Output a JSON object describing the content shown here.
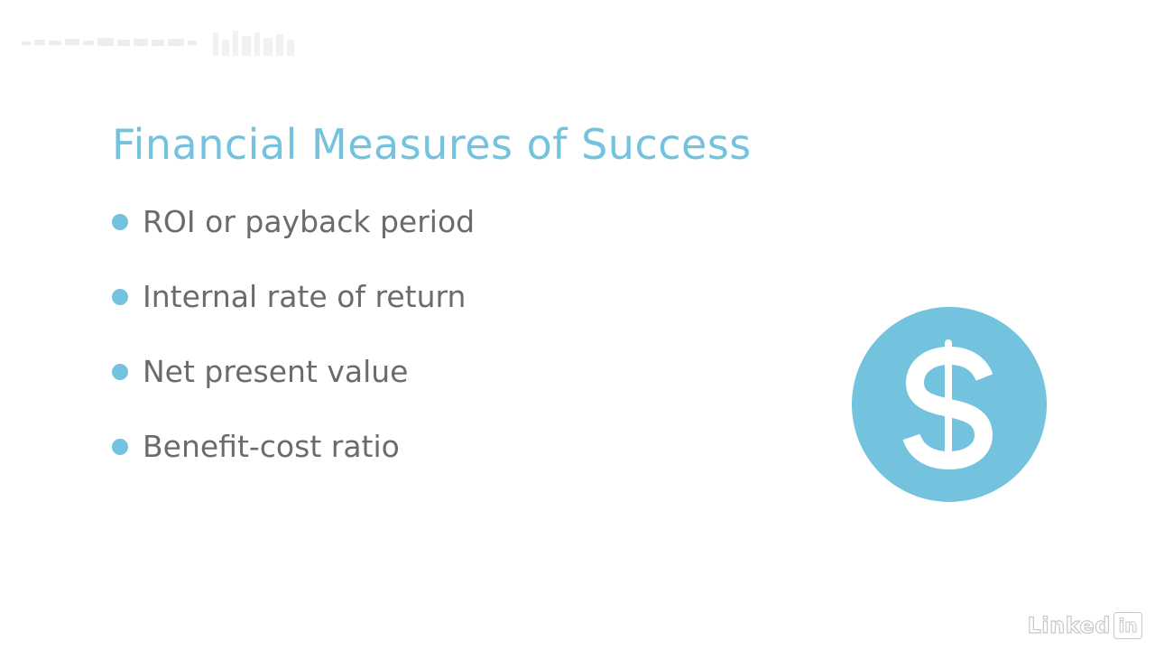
{
  "slide": {
    "title": "Financial Measures of Success",
    "bullets": [
      "ROI or payback period",
      "Internal rate of return",
      "Net present value",
      "Benefit-cost ratio"
    ],
    "icon": "dollar-sign-icon"
  },
  "branding": {
    "watermark_word": "Linked",
    "watermark_box": "in"
  },
  "colors": {
    "accent": "#73c3df",
    "body_text": "#6b6b6b",
    "background": "#ffffff"
  }
}
